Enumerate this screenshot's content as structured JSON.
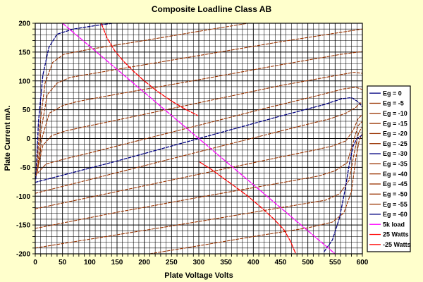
{
  "window": {
    "title": "Composite Loadline Class AB"
  },
  "colors": {
    "background": "#FFFFCC",
    "plot_background": "#FFFFFF",
    "grid": "#000000",
    "axis": "#000000",
    "navy": "#000080",
    "brown": "#993300",
    "magenta": "#FF00FF",
    "red": "#FF0000",
    "legend_background": "#FFFFFF",
    "legend_border": "#000000"
  },
  "chart_data": {
    "type": "line",
    "title": "Composite Loadline Class AB",
    "xlabel": "Plate Voltage  Volts",
    "ylabel": "Plate Current  mA.",
    "xlim": [
      0,
      600
    ],
    "ylim": [
      -200,
      200
    ],
    "x_ticks": [
      0,
      50,
      100,
      150,
      200,
      250,
      300,
      350,
      400,
      450,
      500,
      550,
      600
    ],
    "y_ticks": [
      200,
      150,
      100,
      50,
      0,
      -50,
      -100,
      -150,
      -200
    ],
    "minor_grid_step_x": 10,
    "minor_grid_step_y": 10,
    "grid": true,
    "legend_position": "right",
    "series": [
      {
        "label": "Eg = 0",
        "color": "#000080",
        "width": 1.3,
        "dash": "4 2.2",
        "points": [
          [
            1,
            -70
          ],
          [
            6,
            30
          ],
          [
            14,
            110
          ],
          [
            25,
            158
          ],
          [
            40,
            181
          ],
          [
            70,
            190
          ],
          [
            110,
            196
          ],
          [
            142,
            200
          ]
        ]
      },
      {
        "label": "Eg = -5",
        "color": "#993300",
        "width": 1.1,
        "dash": "4 2.2",
        "points": [
          [
            2,
            -64
          ],
          [
            8,
            20
          ],
          [
            18,
            96
          ],
          [
            32,
            132
          ],
          [
            52,
            146
          ],
          [
            100,
            155
          ],
          [
            200,
            170
          ],
          [
            300,
            186
          ],
          [
            390,
            200
          ]
        ]
      },
      {
        "label": "Eg = -10",
        "color": "#993300",
        "width": 1.1,
        "dash": "4 2.2",
        "points": [
          [
            4,
            -58
          ],
          [
            10,
            10
          ],
          [
            22,
            76
          ],
          [
            40,
            96
          ],
          [
            64,
            106
          ],
          [
            150,
            120
          ],
          [
            300,
            144
          ],
          [
            450,
            168
          ],
          [
            545,
            182
          ],
          [
            600,
            190
          ]
        ]
      },
      {
        "label": "Eg = -15",
        "color": "#993300",
        "width": 1.1,
        "dash": "4 2.2",
        "points": [
          [
            5,
            -52
          ],
          [
            12,
            0
          ],
          [
            26,
            44
          ],
          [
            50,
            57
          ],
          [
            76,
            64
          ],
          [
            150,
            77
          ],
          [
            300,
            102
          ],
          [
            450,
            128
          ],
          [
            560,
            146
          ],
          [
            600,
            151
          ]
        ]
      },
      {
        "label": "Eg = -20",
        "color": "#993300",
        "width": 1.1,
        "dash": "4 2.2",
        "points": [
          [
            6,
            -46
          ],
          [
            14,
            -12
          ],
          [
            30,
            5
          ],
          [
            55,
            13
          ],
          [
            88,
            20
          ],
          [
            150,
            32
          ],
          [
            300,
            62
          ],
          [
            450,
            92
          ],
          [
            555,
            110
          ],
          [
            585,
            115
          ],
          [
            600,
            113
          ]
        ]
      },
      {
        "label": "Eg = -25",
        "color": "#993300",
        "width": 1.1,
        "dash": "4 2.2",
        "points": [
          [
            4,
            -60
          ],
          [
            20,
            -44
          ],
          [
            60,
            -34
          ],
          [
            100,
            -25
          ],
          [
            200,
            -1
          ],
          [
            300,
            23
          ],
          [
            420,
            52
          ],
          [
            520,
            75
          ],
          [
            565,
            86
          ],
          [
            588,
            89
          ],
          [
            600,
            85
          ]
        ]
      },
      {
        "label": "Eg = -30",
        "color": "#000080",
        "width": 1.3,
        "dash": "4 2.2",
        "points": [
          [
            0,
            -76
          ],
          [
            150,
            -39
          ],
          [
            300,
            0
          ],
          [
            450,
            39
          ],
          [
            530,
            59
          ],
          [
            562,
            69
          ],
          [
            580,
            71
          ],
          [
            592,
            64
          ],
          [
            600,
            55
          ]
        ]
      },
      {
        "label": "Eg = -35",
        "color": "#993300",
        "width": 1.1,
        "dash": "4 2.2",
        "points": [
          [
            0,
            -95
          ],
          [
            180,
            -52
          ],
          [
            300,
            -23
          ],
          [
            400,
            1
          ],
          [
            500,
            25
          ],
          [
            540,
            34
          ],
          [
            570,
            44
          ],
          [
            588,
            54
          ],
          [
            597,
            62
          ]
        ]
      },
      {
        "label": "Eg = -40",
        "color": "#993300",
        "width": 1.1,
        "dash": "4 2.2",
        "points": [
          [
            0,
            -122
          ],
          [
            150,
            -92
          ],
          [
            300,
            -62
          ],
          [
            450,
            -32
          ],
          [
            512,
            -20
          ],
          [
            545,
            -13
          ],
          [
            570,
            -4
          ],
          [
            584,
            16
          ],
          [
            592,
            34
          ],
          [
            600,
            42
          ]
        ]
      },
      {
        "label": "Eg = -45",
        "color": "#993300",
        "width": 1.1,
        "dash": "4 2.2",
        "points": [
          [
            0,
            -156
          ],
          [
            150,
            -128
          ],
          [
            300,
            -102
          ],
          [
            450,
            -77
          ],
          [
            520,
            -65
          ],
          [
            550,
            -56
          ],
          [
            572,
            -42
          ],
          [
            584,
            -4
          ],
          [
            592,
            22
          ],
          [
            600,
            30
          ]
        ]
      },
      {
        "label": "Eg = -50",
        "color": "#993300",
        "width": 1.1,
        "dash": "4 2.2",
        "points": [
          [
            0,
            -190
          ],
          [
            150,
            -167
          ],
          [
            300,
            -144
          ],
          [
            450,
            -120
          ],
          [
            532,
            -107
          ],
          [
            558,
            -96
          ],
          [
            576,
            -72
          ],
          [
            586,
            -20
          ],
          [
            593,
            10
          ],
          [
            599,
            19
          ]
        ]
      },
      {
        "label": "Eg = -55",
        "color": "#993300",
        "width": 1.1,
        "dash": "4 2.2",
        "points": [
          [
            210,
            -200
          ],
          [
            300,
            -186
          ],
          [
            400,
            -170
          ],
          [
            500,
            -155
          ],
          [
            545,
            -145
          ],
          [
            566,
            -129
          ],
          [
            580,
            -92
          ],
          [
            588,
            -35
          ],
          [
            594,
            -4
          ],
          [
            599,
            7
          ]
        ]
      },
      {
        "label": "Eg = -60",
        "color": "#000080",
        "width": 1.3,
        "dash": "4 2.2",
        "points": [
          [
            530,
            -196
          ],
          [
            545,
            -176
          ],
          [
            558,
            -138
          ],
          [
            568,
            -90
          ],
          [
            576,
            -45
          ],
          [
            583,
            -13
          ],
          [
            590,
            0
          ],
          [
            598,
            5
          ]
        ]
      },
      {
        "label": "5k load",
        "color": "#FF00FF",
        "width": 1.3,
        "dash": "6 2",
        "points": [
          [
            50,
            200
          ],
          [
            550,
            -200
          ]
        ]
      },
      {
        "label": "25 Watts",
        "color": "#FF0000",
        "width": 1.3,
        "dash": "6 2",
        "points": [
          [
            121,
            200
          ],
          [
            132,
            174
          ],
          [
            146,
            152
          ],
          [
            162,
            134
          ],
          [
            180,
            117
          ],
          [
            200,
            100
          ],
          [
            224,
            82
          ],
          [
            250,
            65
          ],
          [
            275,
            51
          ],
          [
            298,
            40
          ]
        ]
      },
      {
        "label": "-25 Watts",
        "color": "#FF0000",
        "width": 1.3,
        "dash": "6 2",
        "points": [
          [
            302,
            -41
          ],
          [
            322,
            -53
          ],
          [
            344,
            -68
          ],
          [
            366,
            -83
          ],
          [
            390,
            -100
          ],
          [
            415,
            -120
          ],
          [
            438,
            -140
          ],
          [
            456,
            -158
          ],
          [
            468,
            -178
          ],
          [
            476,
            -196
          ],
          [
            478,
            -200
          ]
        ]
      }
    ]
  }
}
